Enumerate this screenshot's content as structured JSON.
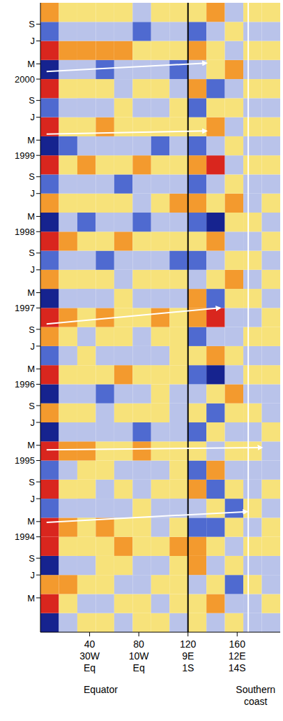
{
  "chart_data": {
    "type": "heatmap",
    "xlim": [
      0,
      195
    ],
    "xticks": [
      40,
      80,
      120,
      160
    ],
    "xtick_sublabels": [
      [
        "30W",
        "Eq"
      ],
      [
        "10W",
        "Eq"
      ],
      [
        "9E",
        "1S"
      ],
      [
        "12E",
        "14S"
      ]
    ],
    "ylim": [
      1992.75,
      2001
    ],
    "yticks": [
      {
        "value": 1993.2,
        "label": "M"
      },
      {
        "value": 1993.5,
        "label": "J"
      },
      {
        "value": 1993.72,
        "label": "S"
      },
      1994,
      {
        "value": 1994.2,
        "label": "M"
      },
      {
        "value": 1994.5,
        "label": "J"
      },
      {
        "value": 1994.72,
        "label": "S"
      },
      1995,
      {
        "value": 1995.2,
        "label": "M"
      },
      {
        "value": 1995.5,
        "label": "J"
      },
      {
        "value": 1995.72,
        "label": "S"
      },
      1996,
      {
        "value": 1996.2,
        "label": "M"
      },
      {
        "value": 1996.5,
        "label": "J"
      },
      {
        "value": 1996.72,
        "label": "S"
      },
      1997,
      {
        "value": 1997.2,
        "label": "M"
      },
      {
        "value": 1997.5,
        "label": "J"
      },
      {
        "value": 1997.72,
        "label": "S"
      },
      1998,
      {
        "value": 1998.2,
        "label": "M"
      },
      {
        "value": 1998.5,
        "label": "J"
      },
      {
        "value": 1998.72,
        "label": "S"
      },
      1999,
      {
        "value": 1999.2,
        "label": "M"
      },
      {
        "value": 1999.5,
        "label": "J"
      },
      {
        "value": 1999.72,
        "label": "S"
      },
      2000,
      {
        "value": 2000.2,
        "label": "M"
      },
      {
        "value": 2000.5,
        "label": "J"
      },
      {
        "value": 2000.72,
        "label": "S"
      }
    ],
    "zlim": [
      -3,
      3
    ],
    "cells": {
      "x_edges": [
        0,
        15,
        30,
        45,
        60,
        75,
        90,
        105,
        120,
        135,
        150,
        165,
        180,
        195
      ],
      "y_edges": [
        1992.75,
        1993,
        1993.25,
        1993.5,
        1993.75,
        1994,
        1994.25,
        1994.5,
        1994.75,
        1995,
        1995.25,
        1995.5,
        1995.75,
        1996,
        1996.25,
        1996.5,
        1996.75,
        1997,
        1997.25,
        1997.5,
        1997.75,
        1998,
        1998.25,
        1998.5,
        1998.75,
        1999,
        1999.25,
        1999.5,
        1999.75,
        2000,
        2000.25,
        2000.5,
        2000.75,
        2001
      ],
      "values": [
        [
          -3,
          -1,
          1,
          1,
          -1,
          1,
          1,
          -1,
          1,
          -1,
          1,
          -1,
          -1
        ],
        [
          3,
          1,
          -1,
          -1,
          1,
          1,
          -1,
          1,
          1,
          2,
          -1,
          -1,
          1
        ],
        [
          2,
          2,
          1,
          1,
          -1,
          -1,
          1,
          1,
          -1,
          1,
          -2,
          1,
          -1
        ],
        [
          -3,
          -1,
          -1,
          1,
          1,
          -1,
          -1,
          1,
          2,
          -1,
          1,
          -1,
          -1
        ],
        [
          3,
          1,
          1,
          1,
          2,
          1,
          1,
          2,
          2,
          1,
          -1,
          1,
          1
        ],
        [
          3,
          2,
          1,
          2,
          1,
          1,
          -1,
          1,
          -2,
          -2,
          1,
          -1,
          1
        ],
        [
          -2,
          -1,
          -1,
          -1,
          -1,
          1,
          -1,
          -1,
          -1,
          1,
          -2,
          1,
          -1
        ],
        [
          3,
          1,
          1,
          -1,
          1,
          -1,
          1,
          1,
          2,
          -2,
          1,
          -1,
          1
        ],
        [
          -2,
          -1,
          1,
          1,
          -1,
          -1,
          -1,
          1,
          -2,
          2,
          -1,
          -1,
          -1
        ],
        [
          3,
          2,
          2,
          1,
          1,
          2,
          1,
          1,
          1,
          -1,
          1,
          1,
          -1
        ],
        [
          -3,
          -1,
          -1,
          -1,
          -1,
          -2,
          -1,
          -1,
          -2,
          1,
          -1,
          -1,
          1
        ],
        [
          2,
          1,
          1,
          -1,
          1,
          1,
          1,
          -1,
          1,
          -2,
          1,
          1,
          -1
        ],
        [
          -3,
          -1,
          -1,
          -2,
          -1,
          -1,
          1,
          -1,
          -1,
          1,
          2,
          -1,
          -1
        ],
        [
          3,
          1,
          1,
          1,
          2,
          1,
          1,
          1,
          -2,
          -3,
          -1,
          1,
          1
        ],
        [
          -2,
          -1,
          1,
          -1,
          -1,
          -1,
          -1,
          1,
          1,
          2,
          1,
          -1,
          -1
        ],
        [
          2,
          1,
          -1,
          1,
          1,
          -1,
          1,
          1,
          -2,
          -1,
          -1,
          1,
          1
        ],
        [
          3,
          2,
          1,
          2,
          1,
          1,
          2,
          1,
          2,
          3,
          -1,
          -1,
          1
        ],
        [
          -3,
          -1,
          -1,
          -1,
          1,
          -1,
          -1,
          -1,
          2,
          -2,
          1,
          1,
          -1
        ],
        [
          2,
          1,
          1,
          1,
          -1,
          1,
          1,
          1,
          -1,
          1,
          2,
          -1,
          1
        ],
        [
          -2,
          -1,
          -1,
          -2,
          -1,
          -1,
          -1,
          -2,
          -2,
          -1,
          1,
          1,
          -1
        ],
        [
          3,
          2,
          1,
          1,
          2,
          1,
          1,
          1,
          1,
          2,
          -1,
          -1,
          1
        ],
        [
          -3,
          -1,
          -2,
          -1,
          -1,
          -2,
          -1,
          -1,
          -2,
          -3,
          1,
          1,
          -1
        ],
        [
          2,
          1,
          1,
          1,
          1,
          -1,
          1,
          2,
          2,
          1,
          2,
          -1,
          1
        ],
        [
          -2,
          -1,
          -1,
          -1,
          -2,
          -1,
          -1,
          -1,
          -2,
          -1,
          1,
          -1,
          -1
        ],
        [
          3,
          1,
          2,
          1,
          1,
          2,
          1,
          1,
          2,
          3,
          -1,
          1,
          1
        ],
        [
          -3,
          -2,
          -1,
          -1,
          -1,
          -1,
          -2,
          -1,
          -2,
          -1,
          1,
          -1,
          -1
        ],
        [
          3,
          1,
          1,
          2,
          1,
          1,
          1,
          1,
          1,
          2,
          -1,
          1,
          1
        ],
        [
          -2,
          -1,
          -1,
          -1,
          1,
          -1,
          -1,
          1,
          -2,
          1,
          1,
          -1,
          -1
        ],
        [
          3,
          1,
          1,
          1,
          -1,
          1,
          1,
          -1,
          2,
          -2,
          -1,
          1,
          1
        ],
        [
          -3,
          -1,
          -1,
          -2,
          -1,
          -1,
          -1,
          -2,
          -1,
          1,
          2,
          -1,
          -1
        ],
        [
          3,
          2,
          2,
          2,
          2,
          1,
          1,
          1,
          2,
          1,
          -1,
          1,
          1
        ],
        [
          -2,
          -1,
          -1,
          -1,
          -1,
          -2,
          -1,
          -1,
          -2,
          -1,
          1,
          -1,
          -1
        ],
        [
          2,
          1,
          1,
          1,
          1,
          -1,
          1,
          1,
          1,
          2,
          -1,
          1,
          1
        ]
      ]
    },
    "arrows": [
      {
        "x": [
          5,
          135
        ],
        "y": [
          2000.1,
          2000.21
        ]
      },
      {
        "x": [
          5,
          135
        ],
        "y": [
          1999.28,
          1999.32
        ]
      },
      {
        "x": [
          5,
          146
        ],
        "y": [
          1996.79,
          1997.0
        ]
      },
      {
        "x": [
          5,
          180
        ],
        "y": [
          1995.14,
          1995.17
        ]
      },
      {
        "x": [
          5,
          168
        ],
        "y": [
          1994.19,
          1994.33
        ]
      }
    ],
    "vlines": [
      {
        "x": 120,
        "color": "#000000"
      },
      {
        "x": 169,
        "color": "#ffffff"
      }
    ],
    "regions": [
      {
        "x": 49,
        "label": "Equator"
      },
      {
        "x": 175,
        "label": "Southern coast"
      }
    ]
  }
}
